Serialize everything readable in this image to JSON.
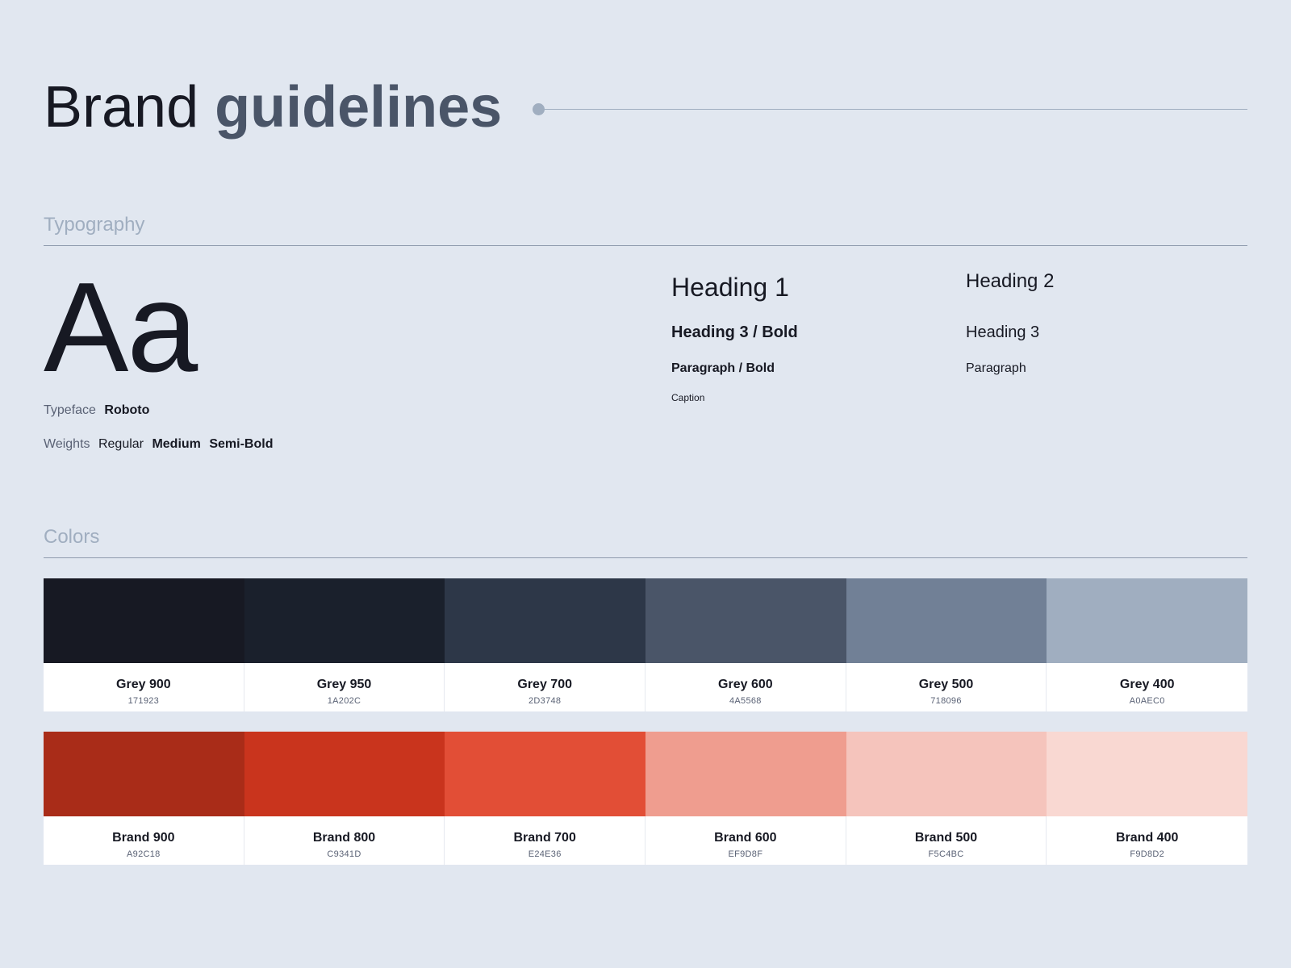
{
  "header": {
    "title_main": "Brand",
    "title_accent": "guidelines"
  },
  "typography": {
    "section_title": "Typography",
    "sample": "Aa",
    "typeface_label": "Typeface",
    "typeface_value": "Roboto",
    "weights_label": "Weights",
    "weights": [
      "Regular",
      "Medium",
      "Semi-Bold"
    ],
    "styles": {
      "heading1": "Heading 1",
      "heading2": "Heading 2",
      "heading3_bold": "Heading 3 / Bold",
      "heading3": "Heading 3",
      "paragraph_bold": "Paragraph / Bold",
      "paragraph": "Paragraph",
      "caption": "Caption"
    }
  },
  "colors": {
    "section_title": "Colors",
    "grey": [
      {
        "name": "Grey 900",
        "hex": "171923",
        "color": "#171923"
      },
      {
        "name": "Grey 950",
        "hex": "1A202C",
        "color": "#1A202C"
      },
      {
        "name": "Grey 700",
        "hex": "2D3748",
        "color": "#2D3748"
      },
      {
        "name": "Grey 600",
        "hex": "4A5568",
        "color": "#4A5568"
      },
      {
        "name": "Grey 500",
        "hex": "718096",
        "color": "#718096"
      },
      {
        "name": "Grey 400",
        "hex": "A0AEC0",
        "color": "#A0AEC0"
      }
    ],
    "brand": [
      {
        "name": "Brand 900",
        "hex": "A92C18",
        "color": "#A92C18"
      },
      {
        "name": "Brand 800",
        "hex": "C9341D",
        "color": "#C9341D"
      },
      {
        "name": "Brand 700",
        "hex": "E24E36",
        "color": "#E24E36"
      },
      {
        "name": "Brand 600",
        "hex": "EF9D8F",
        "color": "#EF9D8F"
      },
      {
        "name": "Brand 500",
        "hex": "F5C4BC",
        "color": "#F5C4BC"
      },
      {
        "name": "Brand 400",
        "hex": "F9D8D2",
        "color": "#F9D8D2"
      }
    ]
  }
}
